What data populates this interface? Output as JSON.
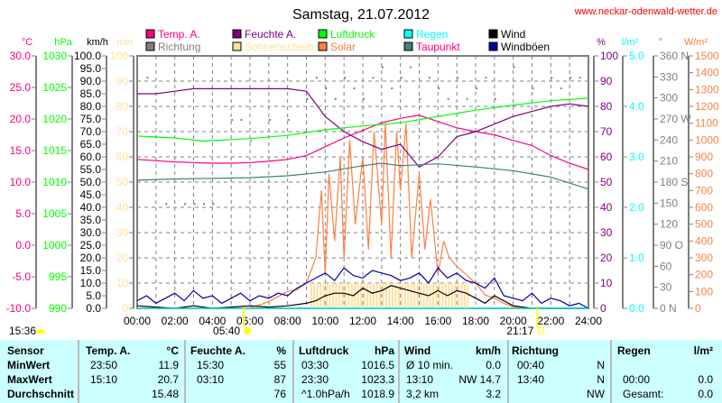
{
  "header": {
    "title": "Samstag, 21.07.2012",
    "url": "www.neckar-odenwald-wetter.de"
  },
  "chart_data": {
    "type": "line",
    "title": "Samstag, 21.07.2012",
    "legend": [
      {
        "name": "Temp. A.",
        "color": "#ff0080",
        "text": "#ff0080"
      },
      {
        "name": "Feuchte A.",
        "color": "#800080",
        "text": "#800080"
      },
      {
        "name": "Luftdruck",
        "color": "#00ff00",
        "text": "#00ff00"
      },
      {
        "name": "Regen",
        "color": "#00ffff",
        "text": "#00ffff"
      },
      {
        "name": "Wind",
        "color": "#000000",
        "text": "#000000"
      },
      {
        "name": "Richtung",
        "color": "#808080",
        "text": "#808080"
      },
      {
        "name": "Sonnenschein",
        "color": "#ffe0a0",
        "text": "#ffe0a0"
      },
      {
        "name": "Solar",
        "color": "#ff8040",
        "text": "#ff8040"
      },
      {
        "name": "Taupunkt",
        "color": "#408080",
        "text": "#ff0080"
      },
      {
        "name": "Windböen",
        "color": "#0000a0",
        "text": "#000000"
      }
    ],
    "axes": {
      "temp": {
        "unit": "°C",
        "min": -10,
        "max": 30,
        "step": 5,
        "dec": 1,
        "color": "#ff0080"
      },
      "pressure": {
        "unit": "hPa",
        "min": 990,
        "max": 1030,
        "step": 5,
        "dec": 0,
        "color": "#00ff00"
      },
      "wind": {
        "unit": "km/h",
        "min": 0,
        "max": 100,
        "step": 5,
        "dec": 1,
        "color": "#000000"
      },
      "sun": {
        "unit": "min",
        "min": 0,
        "max": 100,
        "step": 10,
        "dec": 0,
        "color": "#ffe0a0"
      },
      "humidity": {
        "unit": "%",
        "min": 0,
        "max": 100,
        "step": 10,
        "dec": 0,
        "color": "#800080"
      },
      "rain": {
        "unit": "l/m²",
        "min": 0,
        "max": 5,
        "step": 1,
        "dec": 1,
        "color": "#00ffff"
      },
      "direction": {
        "unit": "°",
        "min": 0,
        "max": 360,
        "step": 30,
        "dec": 0,
        "color": "#808080",
        "compass": {
          "0": "N",
          "90": "O",
          "180": "S",
          "270": "W",
          "360": "N"
        }
      },
      "solar": {
        "unit": "W/m²",
        "min": 0,
        "max": 1500,
        "step": 100,
        "dec": 0,
        "color": "#ff8040"
      }
    },
    "x_ticks": [
      "00:00",
      "02:00",
      "04:00",
      "06:00",
      "08:00",
      "10:00",
      "12:00",
      "14:00",
      "16:00",
      "18:00",
      "20:00",
      "22:00",
      "24:00"
    ],
    "xlim": [
      0,
      24
    ],
    "series": [
      {
        "name": "Temp. A.",
        "axis": "temp",
        "x": [
          0,
          1,
          2,
          3,
          4,
          5,
          6,
          7,
          8,
          9,
          10,
          11,
          12,
          13,
          14,
          15,
          16,
          17,
          18,
          19,
          20,
          21,
          22,
          23,
          24
        ],
        "values": [
          13.6,
          13.4,
          13.2,
          13.1,
          13.0,
          13.0,
          13.1,
          13.3,
          13.6,
          14.2,
          15.6,
          17.0,
          18.2,
          19.4,
          20.1,
          20.6,
          19.6,
          18.6,
          18.0,
          17.5,
          16.6,
          15.8,
          14.2,
          13.0,
          12.0
        ]
      },
      {
        "name": "Feuchte A.",
        "axis": "humidity",
        "x": [
          0,
          1,
          2,
          3,
          4,
          5,
          6,
          7,
          8,
          9,
          10,
          11,
          12,
          13,
          14,
          15,
          16,
          17,
          18,
          19,
          20,
          21,
          22,
          23,
          24
        ],
        "values": [
          85,
          85,
          86,
          87,
          87,
          87,
          87,
          87,
          87,
          86,
          76,
          70,
          66,
          63,
          65,
          56,
          60,
          68,
          70,
          73,
          76,
          78,
          80,
          81,
          80
        ]
      },
      {
        "name": "Luftdruck",
        "axis": "pressure",
        "x": [
          0,
          2,
          3.5,
          6,
          8,
          10,
          12,
          14,
          16,
          18,
          20,
          22,
          24
        ],
        "values": [
          1017.3,
          1017.0,
          1016.5,
          1016.9,
          1017.4,
          1018.3,
          1018.9,
          1019.4,
          1020.4,
          1021.4,
          1022.2,
          1022.9,
          1023.3
        ]
      },
      {
        "name": "Taupunkt",
        "axis": "temp",
        "x": [
          0,
          2,
          4,
          6,
          8,
          10,
          12,
          13,
          14,
          16,
          18,
          20,
          22,
          24
        ],
        "values": [
          10.3,
          10.5,
          10.6,
          10.7,
          11.0,
          11.6,
          12.6,
          13.0,
          12.6,
          12.9,
          12.4,
          11.8,
          10.8,
          8.9
        ]
      },
      {
        "name": "Regen",
        "axis": "rain",
        "x": [
          0,
          24
        ],
        "values": [
          0,
          0
        ]
      }
    ],
    "wind": {
      "x": [
        0,
        1,
        2,
        3,
        4,
        5,
        6,
        7,
        8,
        9,
        9.5,
        10,
        10.5,
        11,
        11.5,
        12,
        12.5,
        13,
        13.5,
        14,
        14.5,
        15,
        15.5,
        16,
        16.5,
        17,
        17.5,
        18,
        18.5,
        19,
        19.5,
        20,
        21,
        22,
        23,
        24
      ],
      "values": [
        1,
        0.5,
        0,
        1,
        0,
        0.5,
        1,
        0.5,
        1,
        2,
        3,
        5,
        6,
        6,
        5,
        8,
        6,
        7,
        9,
        8,
        7,
        6,
        5,
        7,
        5,
        7,
        6,
        4,
        2,
        5,
        3,
        1,
        0,
        0,
        0,
        0
      ]
    },
    "gusts": {
      "x": [
        0,
        0.5,
        1,
        1.5,
        2,
        2.5,
        3,
        3.5,
        4,
        4.5,
        5,
        5.5,
        6,
        6.5,
        7,
        7.5,
        8,
        8.5,
        9,
        9.5,
        10,
        10.5,
        11,
        11.5,
        12,
        12.5,
        13,
        13.5,
        14,
        14.5,
        15,
        15.5,
        16,
        16.5,
        17,
        17.5,
        18,
        18.5,
        19,
        19.5,
        20,
        20.5,
        21,
        21.5,
        22,
        22.5,
        23,
        23.5,
        24
      ],
      "values": [
        3,
        5,
        2,
        4,
        6,
        3,
        7,
        4,
        5,
        2,
        4,
        6,
        3,
        5,
        4,
        6,
        5,
        8,
        10,
        12,
        14,
        11,
        16,
        13,
        12,
        15,
        14,
        13,
        11,
        12,
        14,
        10,
        16,
        12,
        14,
        11,
        10,
        8,
        12,
        5,
        4,
        3,
        6,
        2,
        4,
        3,
        1,
        2,
        0
      ]
    },
    "solar": {
      "x": [
        5.5,
        6,
        6.5,
        7,
        7.5,
        8,
        8.5,
        9,
        9.5,
        9.8,
        10,
        10.2,
        10.5,
        10.8,
        11,
        11.3,
        11.6,
        12,
        12.3,
        12.6,
        13,
        13.2,
        13.5,
        13.8,
        14,
        14.3,
        14.6,
        15,
        15.3,
        15.6,
        16,
        16.3,
        16.6,
        17,
        17.5,
        18,
        18.5,
        19,
        19.5,
        20,
        20.5,
        21
      ],
      "values": [
        0,
        5,
        20,
        40,
        70,
        100,
        110,
        150,
        300,
        700,
        200,
        800,
        400,
        900,
        300,
        1000,
        500,
        900,
        350,
        1050,
        500,
        1100,
        300,
        1050,
        700,
        1100,
        300,
        800,
        350,
        650,
        200,
        400,
        300,
        250,
        200,
        150,
        80,
        60,
        30,
        10,
        5,
        0
      ]
    },
    "sunshine": {
      "x_start": 9.2,
      "x_end": 17.6,
      "value": 10
    },
    "direction": {
      "x": [
        0.5,
        1.5,
        2.5,
        3,
        3.5,
        4,
        5,
        5.5,
        6,
        7,
        8,
        9,
        9.5,
        10,
        10.5,
        11,
        11.5,
        12,
        12.5,
        13,
        13.5,
        14,
        14.5,
        15,
        15.5,
        16,
        16.5,
        17,
        17.5,
        18,
        18.5,
        19,
        20,
        21,
        22,
        22.5,
        23,
        23.5
      ],
      "values": [
        330,
        150,
        150,
        150,
        150,
        150,
        270,
        270,
        240,
        270,
        270,
        300,
        330,
        315,
        300,
        330,
        315,
        300,
        330,
        345,
        315,
        330,
        345,
        300,
        330,
        315,
        300,
        330,
        300,
        315,
        330,
        300,
        345,
        315,
        330,
        315,
        330,
        330
      ]
    }
  },
  "sun": {
    "sunrise": "05:40",
    "sunset": "21:17",
    "moonrise": "15:36"
  },
  "table": {
    "headers": {
      "sensor": "Sensor",
      "temp": "Temp. A.",
      "temp_unit": "°C",
      "hum": "Feuchte A.",
      "hum_unit": "%",
      "press": "Luftdruck",
      "press_unit": "hPa",
      "wind": "Wind",
      "wind_unit": "km/h",
      "dir": "Richtung",
      "rain": "Regen",
      "rain_unit": "l/m²"
    },
    "rows": [
      {
        "label": "MinWert",
        "temp_t": "23:50",
        "temp_v": "11.9",
        "hum_t": "15:30",
        "hum_v": "55",
        "press_t": "03:30",
        "press_v": "1016.5",
        "wind_t": "Ø 10 min.",
        "wind_v": "0.0",
        "dir_t": "00:40",
        "dir_v": "N",
        "rain_t": "",
        "rain_v": ""
      },
      {
        "label": "MaxWert",
        "temp_t": "15:10",
        "temp_v": "20.7",
        "hum_t": "03:10",
        "hum_v": "87",
        "press_t": "23:30",
        "press_v": "1023.3",
        "wind_t": "13:10",
        "wind_v": "NW 14.7",
        "dir_t": "13:40",
        "dir_v": "N",
        "rain_t": "00:00",
        "rain_v": "0.0"
      },
      {
        "label": "Durchschnitt",
        "temp_t": "",
        "temp_v": "15.48",
        "hum_t": "",
        "hum_v": "76",
        "press_t": "^1.0hPa/h",
        "press_v": "1018.9",
        "wind_t": "3,2 km",
        "wind_v": "3.2",
        "dir_t": "",
        "dir_v": "NW",
        "rain_t": "Gesamt:",
        "rain_v": "0.0"
      }
    ]
  }
}
